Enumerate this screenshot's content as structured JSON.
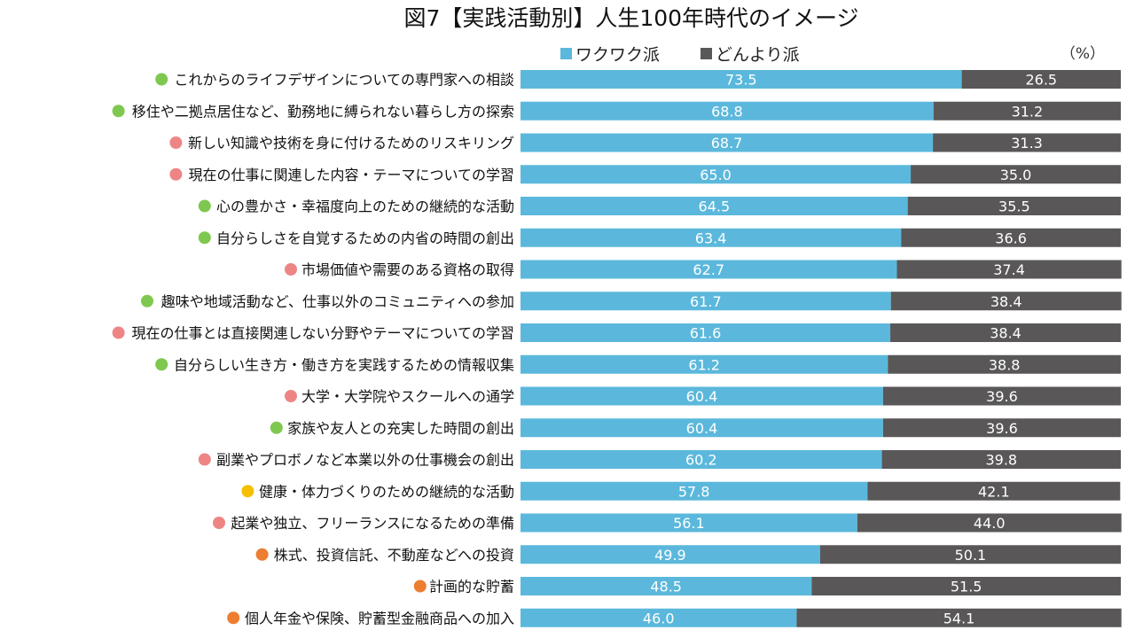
{
  "chart_data": {
    "type": "bar",
    "orientation": "horizontal",
    "stacked": true,
    "title": "図7【実践活動別】人生100年時代のイメージ",
    "unit_label": "（%）",
    "legend_position": "top",
    "categories": [
      "これからのライフデザインについての専門家への相談",
      "移住や二拠点居住など、勤務地に縛られない暮らし方の探索",
      "新しい知識や技術を身に付けるためのリスキリング",
      "現在の仕事に関連した内容・テーマについての学習",
      "心の豊かさ・幸福度向上のための継続的な活動",
      "自分らしさを自覚するための内省の時間の創出",
      "市場価値や需要のある資格の取得",
      "趣味や地域活動など、仕事以外のコミュニティへの参加",
      "現在の仕事とは直接関連しない分野やテーマについての学習",
      "自分らしい生き方・働き方を実践するための情報収集",
      "大学・大学院やスクールへの通学",
      "家族や友人との充実した時間の創出",
      "副業やプロボノなど本業以外の仕事機会の創出",
      "健康・体力づくりのための継続的な活動",
      "起業や独立、フリーランスになるための準備",
      "株式、投資信託、不動産などへの投資",
      "計画的な貯蓄",
      "個人年金や保険、貯蓄型金融商品への加入"
    ],
    "category_dot_colors": [
      "#7ec850",
      "#7ec850",
      "#ee8585",
      "#ee8585",
      "#7ec850",
      "#7ec850",
      "#ee8585",
      "#7ec850",
      "#ee8585",
      "#7ec850",
      "#ee8585",
      "#7ec850",
      "#ee8585",
      "#f5c000",
      "#ee8585",
      "#ed7d31",
      "#ed7d31",
      "#ed7d31"
    ],
    "series": [
      {
        "name": "ワクワク派",
        "color": "#5bb8dc",
        "label_color": "#ffffff",
        "values": [
          73.5,
          68.8,
          68.7,
          65.0,
          64.5,
          63.4,
          62.7,
          61.7,
          61.6,
          61.2,
          60.4,
          60.4,
          60.2,
          57.8,
          56.1,
          49.9,
          48.5,
          46.0
        ]
      },
      {
        "name": "どんより派",
        "color": "#595757",
        "label_color": "#ffffff",
        "values": [
          26.5,
          31.2,
          31.3,
          35.0,
          35.5,
          36.6,
          37.4,
          38.4,
          38.4,
          38.8,
          39.6,
          39.6,
          39.8,
          42.1,
          44.0,
          50.1,
          51.5,
          54.1
        ]
      }
    ],
    "xlim": [
      0,
      100
    ]
  }
}
